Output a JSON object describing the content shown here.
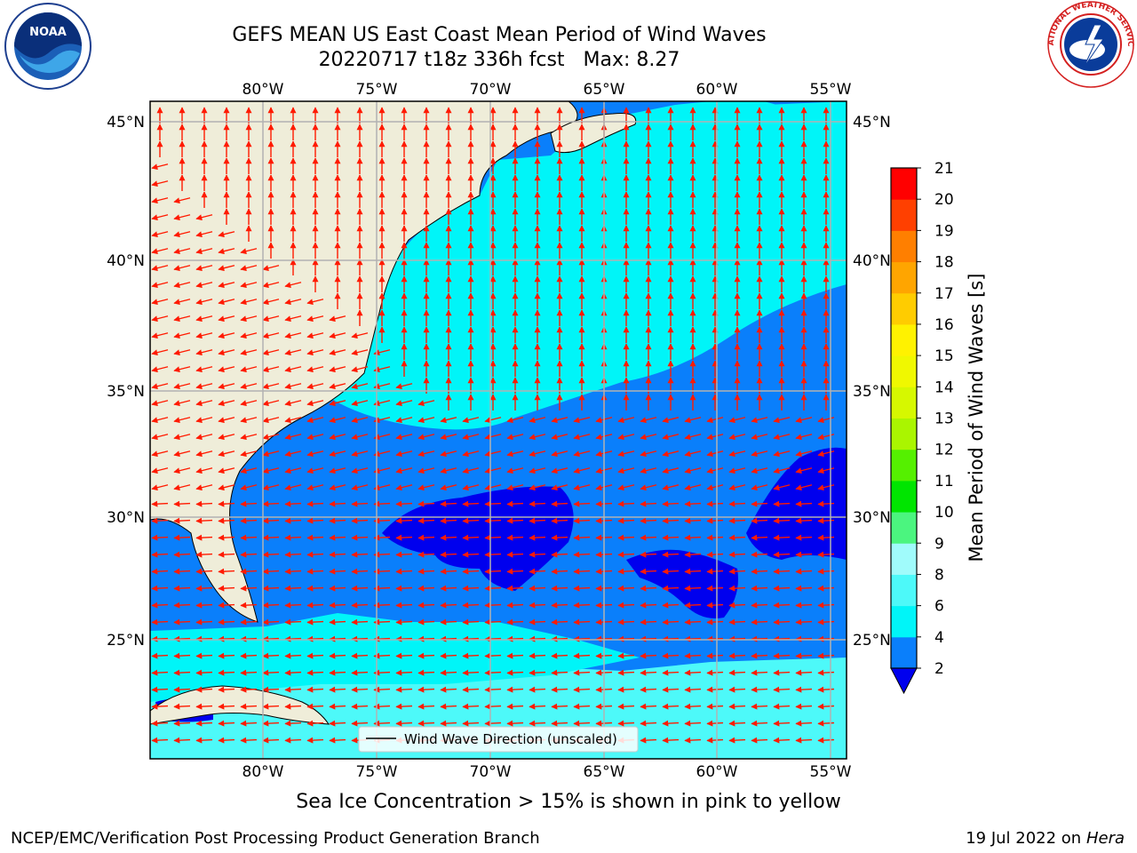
{
  "header": {
    "title": "GEFS MEAN US East Coast Mean Period of Wind Waves",
    "subtitle_date": "20220717 t18z 336h fcst",
    "subtitle_max": "Max: 8.27"
  },
  "logos": {
    "left": "NOAA",
    "right": "NATIONAL WEATHER SERVICE"
  },
  "map": {
    "lon_labels": [
      "80°W",
      "75°W",
      "70°W",
      "65°W",
      "60°W",
      "55°W"
    ],
    "lat_labels": [
      "45°N",
      "40°N",
      "35°N",
      "30°N",
      "25°N"
    ],
    "legend_label": "Wind Wave Direction (unscaled)",
    "colors": {
      "land": "#efedd9",
      "coast": "#000000",
      "grid": "#b2b2b2",
      "arrow": "#ff1a00",
      "c2_4": "#0a7ffb",
      "c4_6": "#00f5f8",
      "c6_8": "#4df9f9",
      "below2": "#0000ee"
    }
  },
  "colorbar": {
    "label": "Mean Period of Wind Waves [s]",
    "ticks": [
      "2",
      "4",
      "6",
      "8",
      "9",
      "10",
      "11",
      "12",
      "13",
      "14",
      "15",
      "16",
      "17",
      "18",
      "19",
      "20",
      "21"
    ],
    "colors": [
      "#0a7ffb",
      "#00f5f8",
      "#4df9f9",
      "#a0fbfb",
      "#4bf57f",
      "#00e500",
      "#55f000",
      "#aaf500",
      "#d6f800",
      "#f0f800",
      "#fff200",
      "#ffcc00",
      "#ffa500",
      "#ff7f00",
      "#ff4000",
      "#ff0000"
    ],
    "under_color": "#0000ee"
  },
  "footer": {
    "note": "Sea Ice Concentration > 15% is shown in pink to yellow",
    "credit": "NCEP/EMC/Verification Post Processing Product Generation Branch",
    "date": "19 Jul 2022",
    "on_text": "on",
    "machine": "Hera"
  }
}
